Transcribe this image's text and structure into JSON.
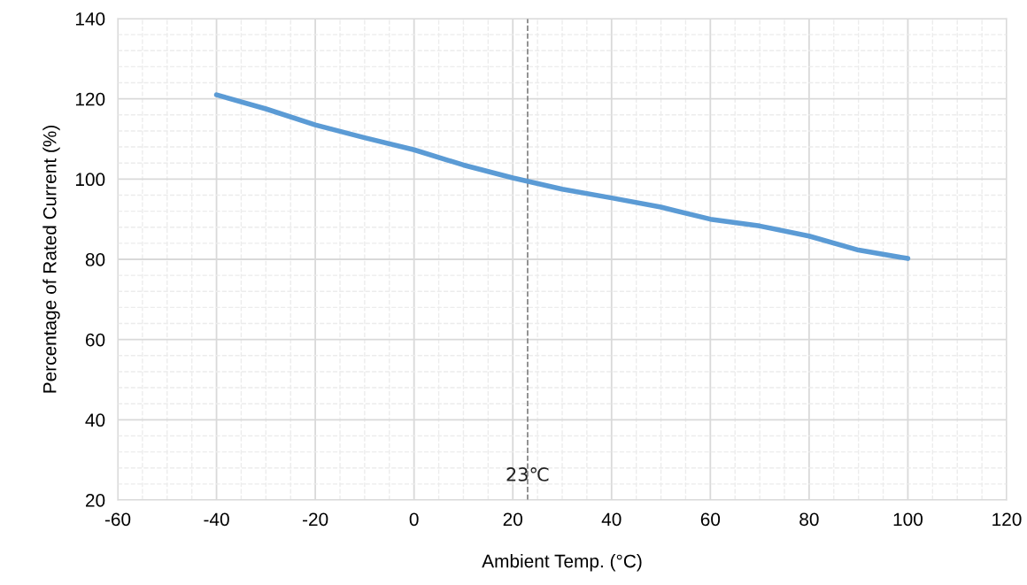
{
  "chart_data": {
    "type": "line",
    "xlabel": "Ambient Temp. (°C)",
    "ylabel": "Percentage of Rated Current (%)",
    "x": [
      -40,
      -30,
      -20,
      -10,
      0,
      10,
      20,
      30,
      40,
      50,
      60,
      70,
      80,
      90,
      100
    ],
    "series": [
      {
        "color": "#5b9bd5",
        "values": [
          121,
          117.5,
          113.5,
          110.3,
          107.3,
          103.5,
          100.3,
          97.5,
          95.3,
          93,
          90,
          88.3,
          85.8,
          82.3,
          80.2
        ]
      }
    ],
    "xlim": [
      -60,
      120
    ],
    "xticks": [
      -60,
      -40,
      -20,
      0,
      20,
      40,
      60,
      80,
      100,
      120
    ],
    "ylim": [
      20,
      140
    ],
    "yticks": [
      20,
      40,
      60,
      80,
      100,
      120,
      140
    ],
    "grid": true,
    "marker": "none",
    "line_style": "solid",
    "ref_lines": [
      {
        "axis": "x",
        "value": 23,
        "label": "23℃",
        "color": "#7f7f7f",
        "line_style": "dashed"
      }
    ]
  }
}
